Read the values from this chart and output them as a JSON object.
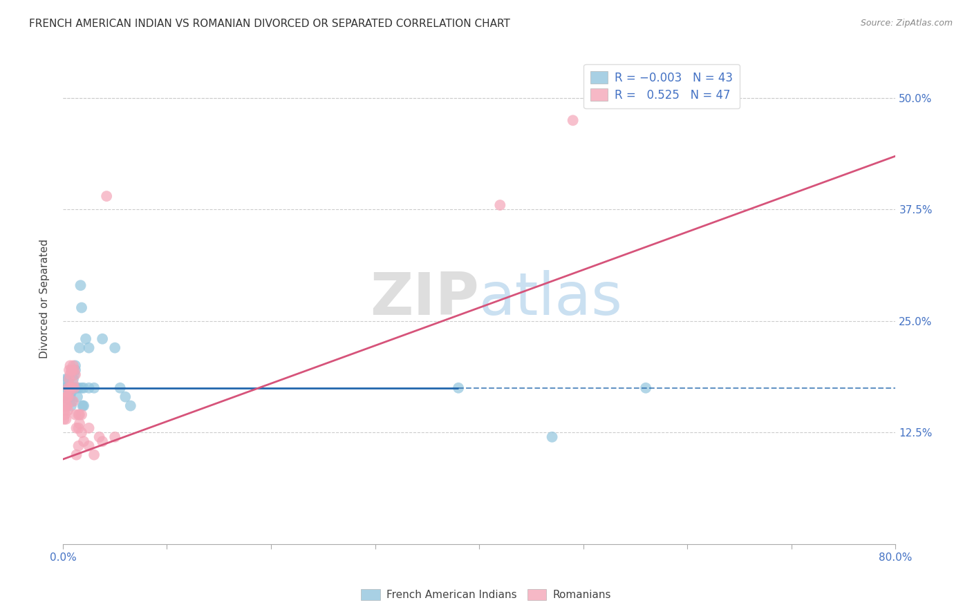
{
  "title": "FRENCH AMERICAN INDIAN VS ROMANIAN DIVORCED OR SEPARATED CORRELATION CHART",
  "source": "Source: ZipAtlas.com",
  "ylabel": "Divorced or Separated",
  "legend_blue_r": "-0.003",
  "legend_blue_n": "43",
  "legend_pink_r": "0.525",
  "legend_pink_n": "47",
  "legend_label_blue": "French American Indians",
  "legend_label_pink": "Romanians",
  "xlim": [
    0.0,
    0.8
  ],
  "ylim": [
    0.0,
    0.55
  ],
  "yticks": [
    0.0,
    0.125,
    0.25,
    0.375,
    0.5
  ],
  "ytick_labels": [
    "",
    "12.5%",
    "25.0%",
    "37.5%",
    "50.0%"
  ],
  "xtick_positions": [
    0.0,
    0.8
  ],
  "xtick_labels": [
    "0.0%",
    "80.0%"
  ],
  "watermark_zip": "ZIP",
  "watermark_atlas": "atlas",
  "blue_color": "#92c5de",
  "pink_color": "#f4a6b8",
  "blue_line_color": "#2166ac",
  "pink_line_color": "#d6537a",
  "blue_scatter": [
    [
      0.001,
      0.175
    ],
    [
      0.002,
      0.16
    ],
    [
      0.003,
      0.185
    ],
    [
      0.004,
      0.175
    ],
    [
      0.004,
      0.165
    ],
    [
      0.005,
      0.185
    ],
    [
      0.005,
      0.175
    ],
    [
      0.006,
      0.185
    ],
    [
      0.006,
      0.175
    ],
    [
      0.007,
      0.165
    ],
    [
      0.007,
      0.175
    ],
    [
      0.008,
      0.17
    ],
    [
      0.008,
      0.155
    ],
    [
      0.009,
      0.175
    ],
    [
      0.009,
      0.16
    ],
    [
      0.01,
      0.175
    ],
    [
      0.01,
      0.185
    ],
    [
      0.011,
      0.19
    ],
    [
      0.011,
      0.175
    ],
    [
      0.012,
      0.2
    ],
    [
      0.012,
      0.195
    ],
    [
      0.013,
      0.175
    ],
    [
      0.014,
      0.165
    ],
    [
      0.015,
      0.175
    ],
    [
      0.016,
      0.22
    ],
    [
      0.017,
      0.29
    ],
    [
      0.018,
      0.265
    ],
    [
      0.018,
      0.175
    ],
    [
      0.019,
      0.155
    ],
    [
      0.02,
      0.175
    ],
    [
      0.02,
      0.155
    ],
    [
      0.022,
      0.23
    ],
    [
      0.025,
      0.22
    ],
    [
      0.025,
      0.175
    ],
    [
      0.03,
      0.175
    ],
    [
      0.038,
      0.23
    ],
    [
      0.05,
      0.22
    ],
    [
      0.055,
      0.175
    ],
    [
      0.06,
      0.165
    ],
    [
      0.065,
      0.155
    ],
    [
      0.38,
      0.175
    ],
    [
      0.47,
      0.12
    ],
    [
      0.56,
      0.175
    ]
  ],
  "pink_scatter": [
    [
      0.001,
      0.155
    ],
    [
      0.001,
      0.14
    ],
    [
      0.002,
      0.145
    ],
    [
      0.002,
      0.15
    ],
    [
      0.003,
      0.165
    ],
    [
      0.003,
      0.155
    ],
    [
      0.003,
      0.14
    ],
    [
      0.004,
      0.165
    ],
    [
      0.004,
      0.155
    ],
    [
      0.005,
      0.15
    ],
    [
      0.005,
      0.175
    ],
    [
      0.005,
      0.165
    ],
    [
      0.006,
      0.195
    ],
    [
      0.006,
      0.185
    ],
    [
      0.006,
      0.17
    ],
    [
      0.007,
      0.2
    ],
    [
      0.007,
      0.19
    ],
    [
      0.007,
      0.175
    ],
    [
      0.008,
      0.195
    ],
    [
      0.008,
      0.175
    ],
    [
      0.009,
      0.195
    ],
    [
      0.01,
      0.2
    ],
    [
      0.01,
      0.18
    ],
    [
      0.01,
      0.16
    ],
    [
      0.011,
      0.195
    ],
    [
      0.011,
      0.175
    ],
    [
      0.012,
      0.19
    ],
    [
      0.012,
      0.145
    ],
    [
      0.013,
      0.13
    ],
    [
      0.013,
      0.1
    ],
    [
      0.015,
      0.145
    ],
    [
      0.015,
      0.13
    ],
    [
      0.015,
      0.11
    ],
    [
      0.016,
      0.145
    ],
    [
      0.016,
      0.135
    ],
    [
      0.018,
      0.145
    ],
    [
      0.018,
      0.125
    ],
    [
      0.02,
      0.115
    ],
    [
      0.025,
      0.13
    ],
    [
      0.025,
      0.11
    ],
    [
      0.03,
      0.1
    ],
    [
      0.035,
      0.12
    ],
    [
      0.038,
      0.115
    ],
    [
      0.042,
      0.39
    ],
    [
      0.05,
      0.12
    ],
    [
      0.42,
      0.38
    ],
    [
      0.49,
      0.475
    ]
  ],
  "blue_line_y": 0.175,
  "blue_line_solid_end": 0.38,
  "blue_line_dash_start": 0.38,
  "blue_line_dash_end": 0.8,
  "pink_line_x0": 0.0,
  "pink_line_y0": 0.095,
  "pink_line_x1": 0.8,
  "pink_line_y1": 0.435,
  "background_color": "#ffffff",
  "grid_color": "#cccccc"
}
